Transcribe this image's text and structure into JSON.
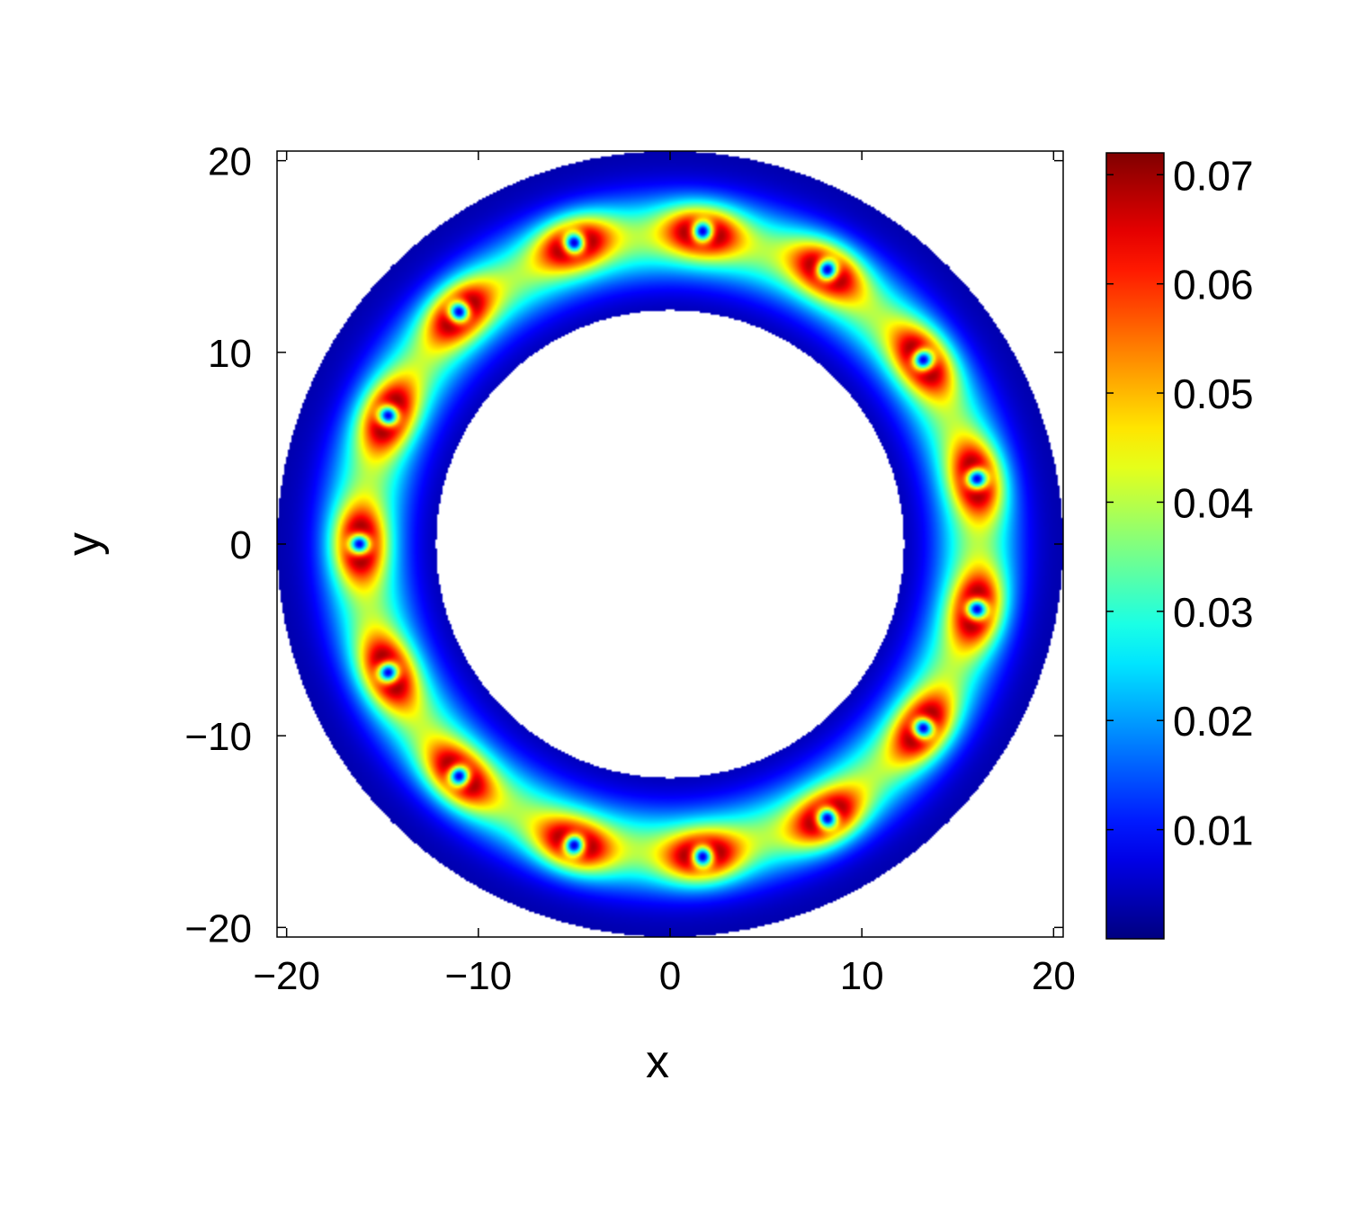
{
  "chart_data": {
    "type": "heatmap",
    "title": "",
    "xlabel": "x",
    "ylabel": "y",
    "xlim": [
      -20.5,
      20.5
    ],
    "ylim": [
      -20.5,
      20.5
    ],
    "x_ticks": [
      -20,
      -10,
      0,
      10,
      20
    ],
    "y_ticks": [
      -20,
      -10,
      0,
      10,
      20
    ],
    "x_tick_labels": [
      "−20",
      "−10",
      "0",
      "10",
      "20"
    ],
    "y_tick_labels": [
      "−20",
      "−10",
      "0",
      "10",
      "20"
    ],
    "colorbar": {
      "range": [
        0.0,
        0.072
      ],
      "ticks": [
        0.01,
        0.02,
        0.03,
        0.04,
        0.05,
        0.06,
        0.07
      ],
      "tick_labels": [
        "0.01",
        "0.02",
        "0.03",
        "0.04",
        "0.05",
        "0.06",
        "0.07"
      ],
      "colormap": "jet",
      "colors": [
        "#00008f",
        "#0000ff",
        "#00ffff",
        "#ffff00",
        "#ff0000",
        "#800000"
      ]
    },
    "annulus": {
      "inner_radius": 12.2,
      "outer_radius": 20.5,
      "background_level": 0.003,
      "ring_level": 0.034,
      "ring_radius": 16.0
    },
    "vortices": [
      {
        "x": 1.7,
        "y": 16.3
      },
      {
        "x": -5.0,
        "y": 15.7
      },
      {
        "x": 8.2,
        "y": 14.3
      },
      {
        "x": -11.0,
        "y": 12.1
      },
      {
        "x": 13.2,
        "y": 9.6
      },
      {
        "x": -14.7,
        "y": 6.7
      },
      {
        "x": 16.0,
        "y": 3.4
      },
      {
        "x": -16.2,
        "y": 0.0
      },
      {
        "x": 16.0,
        "y": -3.4
      },
      {
        "x": -14.7,
        "y": -6.7
      },
      {
        "x": 13.2,
        "y": -9.6
      },
      {
        "x": -11.0,
        "y": -12.1
      },
      {
        "x": 8.2,
        "y": -14.3
      },
      {
        "x": -5.0,
        "y": -15.7
      },
      {
        "x": 1.7,
        "y": -16.3
      }
    ]
  }
}
